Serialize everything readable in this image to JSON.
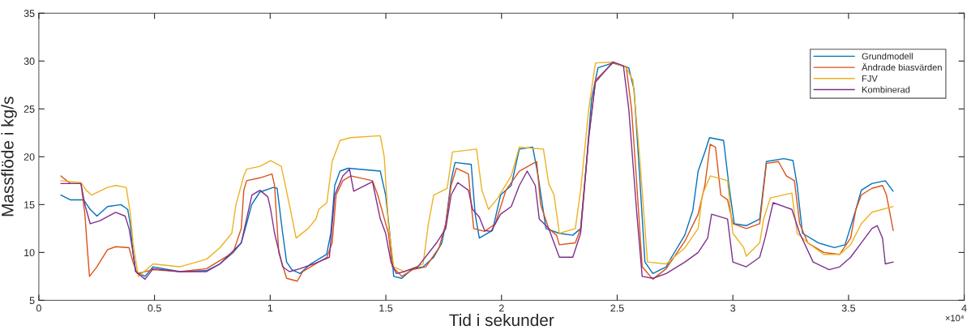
{
  "chart_data": {
    "type": "line",
    "xlabel": "Tid i sekunder",
    "ylabel": "Massflöde i kg/s",
    "annotations": [
      "×10⁴"
    ],
    "xlim": [
      0,
      4
    ],
    "xticks": [
      0,
      0.5,
      1,
      1.5,
      2,
      2.5,
      3,
      3.5,
      4
    ],
    "ylim": [
      5,
      35
    ],
    "yticks": [
      5,
      10,
      15,
      20,
      25,
      30,
      35
    ],
    "legend": "top right",
    "series": [
      {
        "name": "Grundmodell",
        "color": "#0072bd",
        "x": [
          0.095,
          0.136,
          0.193,
          0.222,
          0.251,
          0.297,
          0.355,
          0.384,
          0.395,
          0.407,
          0.418,
          0.459,
          0.494,
          0.609,
          0.725,
          0.782,
          0.84,
          0.875,
          0.898,
          0.92,
          0.955,
          1.013,
          1.03,
          1.054,
          1.071,
          1.094,
          1.129,
          1.175,
          1.244,
          1.262,
          1.279,
          1.302,
          1.337,
          1.476,
          1.499,
          1.517,
          1.534,
          1.569,
          1.615,
          1.661,
          1.707,
          1.742,
          1.759,
          1.782,
          1.799,
          1.869,
          1.886,
          1.904,
          1.961,
          1.996,
          2.042,
          2.077,
          2.135,
          2.158,
          2.192,
          2.25,
          2.308,
          2.342,
          2.366,
          2.389,
          2.417,
          2.481,
          2.55,
          2.573,
          2.597,
          2.62,
          2.654,
          2.712,
          2.735,
          2.792,
          2.827,
          2.85,
          2.879,
          2.899,
          2.96,
          2.983,
          3.006,
          3.058,
          3.116,
          3.145,
          3.22,
          3.26,
          3.278,
          3.301,
          3.37,
          3.439,
          3.485,
          3.532,
          3.555,
          3.601,
          3.659,
          3.693
        ],
        "values": [
          16,
          15.5,
          15.5,
          14.5,
          13.8,
          14.8,
          15,
          14.5,
          13,
          10,
          8,
          7.5,
          8.5,
          8,
          8.1,
          8.8,
          10,
          11,
          13,
          15,
          16.3,
          16.8,
          16.7,
          12,
          9,
          8.2,
          7.8,
          8.8,
          9.8,
          12,
          17,
          18.5,
          18.8,
          18.5,
          16,
          12,
          7.5,
          7.3,
          8.3,
          8.5,
          9.5,
          11,
          13,
          17.5,
          19.4,
          19.2,
          14,
          11.5,
          12.3,
          16,
          17,
          20.8,
          21,
          18,
          12.5,
          12,
          11.8,
          12.5,
          19,
          26,
          29.3,
          29.8,
          29.3,
          27,
          18,
          9,
          7.8,
          8.5,
          9.5,
          11.8,
          14.4,
          18.5,
          20.5,
          22,
          21.7,
          17,
          13,
          12.8,
          13.5,
          19.5,
          19.8,
          19.6,
          17,
          12,
          11,
          10.5,
          10.8,
          14.5,
          16.5,
          17.2,
          17.5,
          16.4
        ]
      },
      {
        "name": "Ändrade biasvärden",
        "color": "#d95319",
        "x": [
          0.095,
          0.136,
          0.182,
          0.199,
          0.211,
          0.219,
          0.251,
          0.297,
          0.332,
          0.39,
          0.407,
          0.425,
          0.494,
          0.609,
          0.725,
          0.84,
          0.875,
          0.886,
          0.898,
          0.956,
          1.008,
          1.019,
          1.037,
          1.071,
          1.117,
          1.141,
          1.245,
          1.268,
          1.285,
          1.314,
          1.348,
          1.442,
          1.465,
          1.488,
          1.511,
          1.528,
          1.569,
          1.615,
          1.673,
          1.73,
          1.759,
          1.782,
          1.805,
          1.857,
          1.869,
          1.88,
          1.927,
          1.973,
          2.019,
          2.077,
          2.152,
          2.169,
          2.204,
          2.238,
          2.25,
          2.319,
          2.342,
          2.377,
          2.406,
          2.481,
          2.539,
          2.562,
          2.585,
          2.608,
          2.654,
          2.712,
          2.793,
          2.85,
          2.879,
          2.902,
          2.925,
          2.948,
          2.977,
          3.0,
          3.058,
          3.116,
          3.145,
          3.197,
          3.231,
          3.266,
          3.289,
          3.324,
          3.393,
          3.462,
          3.509,
          3.532,
          3.555,
          3.601,
          3.647,
          3.664,
          3.693
        ],
        "values": [
          18,
          17.2,
          17.2,
          14,
          10,
          7.5,
          8.5,
          10.3,
          10.6,
          10.5,
          9,
          7.8,
          8.2,
          8,
          8.3,
          10,
          12.5,
          16.5,
          17.5,
          17.8,
          18.2,
          17,
          10,
          7.3,
          7,
          8,
          9.5,
          11,
          16,
          17.5,
          18,
          17.5,
          16,
          14,
          12,
          8.5,
          7.5,
          8.2,
          8.5,
          10.5,
          13,
          17,
          18.8,
          18.2,
          15,
          12.5,
          12.2,
          13,
          16.5,
          18.5,
          19.5,
          15,
          12.5,
          11.8,
          10.8,
          11,
          12.5,
          22,
          28,
          29.8,
          29.4,
          25,
          17,
          8.5,
          7.2,
          8.3,
          11.2,
          14,
          17,
          21.3,
          21,
          16,
          15.5,
          13,
          12.5,
          13,
          19.3,
          19.5,
          18,
          17.5,
          13,
          11,
          10,
          9.8,
          11.5,
          14.5,
          16,
          16.7,
          17,
          16,
          12.3
        ]
      },
      {
        "name": "FJV",
        "color": "#edb120",
        "x": [
          0.095,
          0.182,
          0.205,
          0.228,
          0.297,
          0.332,
          0.378,
          0.396,
          0.407,
          0.43,
          0.494,
          0.609,
          0.725,
          0.783,
          0.834,
          0.852,
          0.886,
          0.898,
          0.956,
          1.002,
          1.048,
          1.083,
          1.112,
          1.164,
          1.198,
          1.21,
          1.245,
          1.268,
          1.302,
          1.348,
          1.476,
          1.493,
          1.511,
          1.534,
          1.58,
          1.661,
          1.684,
          1.707,
          1.765,
          1.788,
          1.892,
          1.915,
          1.944,
          1.984,
          2.042,
          2.077,
          2.181,
          2.204,
          2.227,
          2.25,
          2.319,
          2.342,
          2.377,
          2.406,
          2.481,
          2.539,
          2.568,
          2.597,
          2.631,
          2.712,
          2.793,
          2.85,
          2.868,
          2.902,
          2.977,
          3.0,
          3.047,
          3.058,
          3.116,
          3.133,
          3.162,
          3.255,
          3.278,
          3.324,
          3.393,
          3.462,
          3.509,
          3.555,
          3.601,
          3.693
        ],
        "values": [
          17.5,
          17.3,
          16.5,
          16,
          16.8,
          17,
          16.8,
          14,
          11,
          7.5,
          8.8,
          8.5,
          9.3,
          10.5,
          12,
          15,
          18,
          18.7,
          19,
          19.6,
          19,
          15,
          11.5,
          12.5,
          13.5,
          14.5,
          15.2,
          19.5,
          21.7,
          22,
          22.2,
          20,
          13,
          8.5,
          8,
          8.8,
          13,
          16,
          16.7,
          20.5,
          20.8,
          16.5,
          14.5,
          15.7,
          18,
          21,
          20.8,
          17.2,
          16,
          12,
          12.5,
          16.5,
          25,
          29.8,
          29.9,
          29.3,
          28,
          20,
          9,
          8.8,
          10.5,
          12.5,
          16,
          18,
          17.5,
          12,
          10.5,
          9.6,
          11,
          13.5,
          15.7,
          16.2,
          12,
          11,
          9.8,
          9.8,
          10.8,
          13,
          14.2,
          14.8
        ]
      },
      {
        "name": "Kombinerad",
        "color": "#7e2f8e",
        "x": [
          0.095,
          0.182,
          0.199,
          0.222,
          0.263,
          0.332,
          0.373,
          0.39,
          0.407,
          0.419,
          0.459,
          0.494,
          0.609,
          0.725,
          0.783,
          0.875,
          0.898,
          0.921,
          0.956,
          0.99,
          1.002,
          1.019,
          1.054,
          1.083,
          1.129,
          1.187,
          1.256,
          1.279,
          1.314,
          1.343,
          1.361,
          1.442,
          1.476,
          1.499,
          1.522,
          1.545,
          1.58,
          1.638,
          1.719,
          1.759,
          1.782,
          1.811,
          1.857,
          1.875,
          1.904,
          1.927,
          1.955,
          1.996,
          2.042,
          2.077,
          2.111,
          2.146,
          2.163,
          2.204,
          2.25,
          2.308,
          2.342,
          2.377,
          2.406,
          2.481,
          2.527,
          2.55,
          2.585,
          2.608,
          2.654,
          2.712,
          2.793,
          2.85,
          2.891,
          2.908,
          2.977,
          3.0,
          3.058,
          3.116,
          3.139,
          3.174,
          3.255,
          3.289,
          3.347,
          3.416,
          3.462,
          3.509,
          3.555,
          3.601,
          3.624,
          3.647,
          3.659,
          3.693
        ],
        "values": [
          17.2,
          17.2,
          15,
          13,
          13.3,
          14.2,
          13.8,
          12.5,
          10,
          8,
          7.2,
          8.3,
          8,
          8,
          8.8,
          11,
          13.5,
          16,
          16.5,
          15.8,
          14.5,
          12,
          8.5,
          8,
          8.3,
          8.8,
          9.5,
          16,
          18,
          18.7,
          16.4,
          17.4,
          13.5,
          12,
          9,
          7.8,
          8,
          8.5,
          11,
          12.5,
          16,
          17.3,
          16.5,
          14.5,
          13.7,
          12.3,
          12.2,
          14,
          14.8,
          17,
          18.5,
          17,
          13.5,
          12.5,
          9.5,
          9.5,
          12,
          22,
          27.8,
          29.9,
          29.5,
          25,
          14,
          7.5,
          7.3,
          7.8,
          9,
          10,
          11.5,
          14,
          13.5,
          9,
          8.5,
          9.5,
          11.5,
          15.2,
          14.5,
          12,
          9,
          8.2,
          8.5,
          9.5,
          11,
          12.5,
          12.8,
          11.5,
          8.8,
          9
        ]
      }
    ]
  }
}
